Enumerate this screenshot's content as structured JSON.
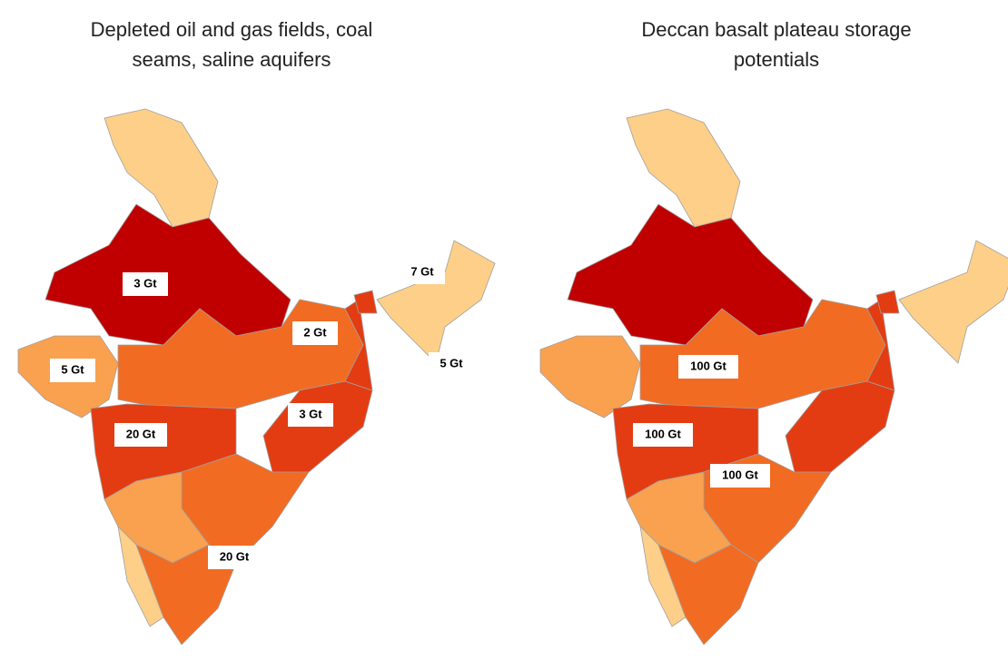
{
  "maps": [
    {
      "title": [
        "Depleted oil and gas fields, coal",
        "seams, saline aquifers"
      ],
      "labels": [
        "3 Gt",
        "2 Gt",
        "7 Gt",
        "5 Gt",
        "5 Gt",
        "20 Gt",
        "3 Gt",
        "20 Gt"
      ]
    },
    {
      "title": [
        "Deccan basalt plateau storage",
        "potentials"
      ],
      "labels": [
        "100 Gt",
        "100 Gt",
        "100 Gt"
      ]
    }
  ]
}
